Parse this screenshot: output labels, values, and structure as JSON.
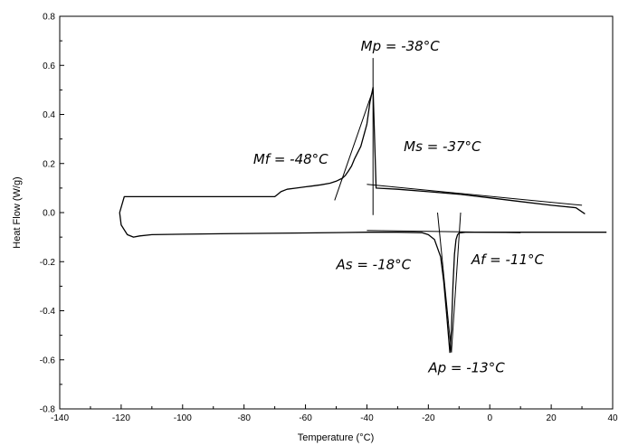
{
  "chart_data": {
    "type": "line",
    "xlabel": "Temperature (°C)",
    "ylabel": "Heat Flow (W/g)",
    "xlim": [
      -140,
      40
    ],
    "ylim": [
      -0.8,
      0.8
    ],
    "xticks": [
      -140,
      -120,
      -100,
      -80,
      -60,
      -40,
      -20,
      0,
      20,
      40
    ],
    "xtick_labels": [
      "-140",
      "-120",
      "-100",
      "-80",
      "-60",
      "-40",
      "-20",
      "0",
      "20",
      "40"
    ],
    "yticks": [
      -0.8,
      -0.6,
      -0.4,
      -0.2,
      0.0,
      0.2,
      0.4,
      0.6,
      0.8
    ],
    "ytick_labels": [
      "-0.8",
      "-0.6",
      "-0.4",
      "-0.2",
      "0.0",
      "0.2",
      "0.4",
      "0.6",
      "0.8"
    ],
    "grid": false,
    "legend": "none",
    "series": [
      {
        "role": "cooling",
        "x": [
          31,
          28,
          20,
          10,
          0,
          -10,
          -20,
          -30,
          -37,
          -38,
          -39,
          -40,
          -42,
          -44,
          -45,
          -46,
          -47,
          -48,
          -50,
          -52,
          -55,
          -58,
          -60,
          -63,
          -66,
          -68,
          -69,
          -70,
          -75,
          -80,
          -90,
          -100,
          -110,
          -115,
          -119,
          -120.5
        ],
        "y": [
          -0.005,
          0.02,
          0.03,
          0.045,
          0.06,
          0.075,
          0.085,
          0.095,
          0.1,
          0.51,
          0.45,
          0.36,
          0.27,
          0.22,
          0.19,
          0.17,
          0.152,
          0.14,
          0.128,
          0.12,
          0.113,
          0.108,
          0.105,
          0.1,
          0.095,
          0.085,
          0.075,
          0.065,
          0.065,
          0.065,
          0.065,
          0.065,
          0.065,
          0.065,
          0.065,
          0.0
        ]
      },
      {
        "role": "heating",
        "x": [
          -120.5,
          -120,
          -118,
          -116,
          -114,
          -110,
          -100,
          -80,
          -60,
          -40,
          -30,
          -22,
          -20,
          -18,
          -16,
          -15,
          -14,
          -13,
          -12.5,
          -12,
          -11.5,
          -11,
          -10.5,
          -10,
          -8,
          0,
          10,
          20,
          30,
          38
        ],
        "y": [
          0.0,
          -0.05,
          -0.09,
          -0.1,
          -0.095,
          -0.09,
          -0.088,
          -0.085,
          -0.083,
          -0.08,
          -0.08,
          -0.082,
          -0.09,
          -0.11,
          -0.18,
          -0.28,
          -0.42,
          -0.57,
          -0.48,
          -0.3,
          -0.17,
          -0.11,
          -0.09,
          -0.083,
          -0.08,
          -0.08,
          -0.08,
          -0.08,
          -0.08,
          -0.08
        ]
      },
      {
        "role": "ms-tangent-baseline",
        "x": [
          -40,
          30
        ],
        "y": [
          0.115,
          0.03
        ]
      },
      {
        "role": "mf-tangent",
        "x": [
          -50.5,
          -38
        ],
        "y": [
          0.05,
          0.5
        ]
      },
      {
        "role": "mp-marker",
        "x": [
          -38,
          -38
        ],
        "y": [
          -0.01,
          0.63
        ]
      },
      {
        "role": "as-baseline",
        "x": [
          -40,
          10
        ],
        "y": [
          -0.073,
          -0.082
        ]
      },
      {
        "role": "as-tangent",
        "x": [
          -17,
          -12.5
        ],
        "y": [
          0.0,
          -0.57
        ]
      },
      {
        "role": "af-tangent",
        "x": [
          -9.5,
          -12.5
        ],
        "y": [
          0.0,
          -0.57
        ]
      }
    ],
    "annotations": [
      {
        "text": "Mp = -38°C",
        "x": -42,
        "y": 0.66
      },
      {
        "text": "Mf = -48°C",
        "x": -77,
        "y": 0.2
      },
      {
        "text": "Ms = -37°C",
        "x": -28,
        "y": 0.25
      },
      {
        "text": "As = -18°C",
        "x": -50,
        "y": -0.23
      },
      {
        "text": "Af = -11°C",
        "x": -6,
        "y": -0.21
      },
      {
        "text": "Ap = -13°C",
        "x": -20,
        "y": -0.65
      }
    ]
  }
}
